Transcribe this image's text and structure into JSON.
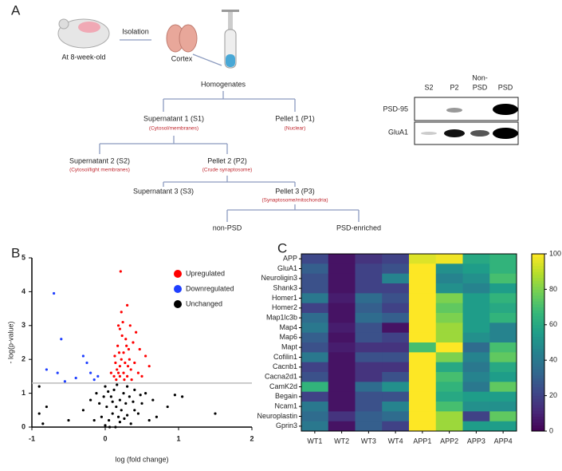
{
  "panel_labels": [
    "A",
    "B",
    "C"
  ],
  "diagram": {
    "isolation": "Isolation",
    "age": "At 8-week-old",
    "cortex": "Cortex",
    "homogenates": "Homogenates",
    "s1": "Supernatant 1 (S1)",
    "s1_note": "(Cytosol/membranes)",
    "p1": "Pellet 1 (P1)",
    "p1_note": "(Nuclear)",
    "s2": "Supernatant 2 (S2)",
    "s2_note": "(Cytosol/light membranes)",
    "p2": "Pellet 2 (P2)",
    "p2_note": "(Crude synaptosome)",
    "s3": "Supernatant 3 (S3)",
    "p3": "Pellet 3 (P3)",
    "p3_note": "(Synaptosome/mitochondria)",
    "nonpsd": "non-PSD",
    "psd": "PSD-enriched"
  },
  "blot": {
    "lanes": [
      "S2",
      "P2",
      [
        "Non-",
        "PSD"
      ],
      "PSD"
    ],
    "rows": [
      "PSD-95",
      "GluA1"
    ]
  },
  "chart_data": [
    {
      "type": "scatter",
      "xlabel": "log (fold change)",
      "ylabel": "- log(p-value)",
      "xlim": [
        -1,
        2
      ],
      "ylim": [
        0,
        5
      ],
      "xticks": [
        -1,
        0,
        1,
        2
      ],
      "yticks": [
        0,
        1,
        2,
        3,
        4,
        5
      ],
      "hline": 1.3,
      "legend": "upper right",
      "series": [
        {
          "name": "Upregulated",
          "color": "#ff0000",
          "x": [
            0.15,
            0.18,
            0.2,
            0.22,
            0.25,
            0.17,
            0.3,
            0.35,
            0.28,
            0.2,
            0.24,
            0.32,
            0.4,
            0.45,
            0.12,
            0.14,
            0.19,
            0.27,
            0.33,
            0.38,
            0.22,
            0.21,
            0.3,
            0.18,
            0.5,
            0.55,
            0.42,
            0.26,
            0.16,
            0.36,
            0.6,
            0.23,
            0.29,
            0.31,
            0.13,
            0.47,
            0.08,
            0.34,
            0.2,
            0.25
          ],
          "values": [
            1.4,
            1.6,
            1.8,
            2.0,
            2.2,
            2.4,
            1.5,
            1.7,
            2.6,
            2.9,
            3.1,
            2.3,
            1.9,
            1.6,
            1.5,
            1.9,
            2.2,
            1.9,
            2.0,
            2.5,
            3.4,
            4.6,
            3.6,
            3.0,
            1.5,
            2.1,
            2.8,
            1.4,
            1.7,
            1.4,
            1.8,
            2.7,
            2.4,
            1.8,
            2.1,
            2.3,
            1.6,
            3.0,
            1.5,
            1.6
          ]
        },
        {
          "name": "Downregulated",
          "color": "#1f3fff",
          "x": [
            -0.7,
            -0.6,
            -0.3,
            -0.25,
            -0.2,
            -0.4,
            -0.15,
            -0.65,
            -0.8,
            -0.1,
            -0.55
          ],
          "values": [
            3.95,
            2.6,
            2.1,
            1.9,
            1.6,
            1.45,
            1.4,
            1.6,
            1.7,
            1.5,
            1.35
          ]
        },
        {
          "name": "Unchanged",
          "color": "#000000",
          "x": [
            -0.9,
            -0.8,
            -0.85,
            -0.9,
            0.95,
            1.05,
            0.85,
            1.5,
            0.7,
            -0.5,
            -0.3,
            -0.2,
            0,
            0.05,
            0.1,
            0.15,
            0.2,
            0.25,
            0.3,
            0.02,
            0.08,
            0.12,
            0.18,
            0.22,
            0.28,
            0.33,
            0.4,
            0.45,
            0.5,
            0.55,
            0.6,
            0.35,
            0.4,
            -0.05,
            -0.08,
            -0.12,
            -0.15,
            0.0,
            0.06,
            0.14,
            0.65,
            0.2,
            0.1,
            0.3,
            0.26,
            -0.02,
            0.04,
            0.16,
            0.38,
            0.48
          ],
          "values": [
            0.4,
            0.6,
            0.1,
            1.2,
            0.95,
            0.9,
            0.6,
            0.4,
            0.3,
            0.2,
            0.5,
            0.8,
            0.05,
            0.2,
            0.4,
            0.6,
            0.8,
            1.0,
            1.2,
            0.6,
            0.9,
            1.1,
            0.3,
            0.5,
            0.7,
            0.9,
            1.1,
            0.4,
            0.7,
            1.0,
            0.2,
            0.1,
            0.5,
            0.3,
            0.7,
            1.0,
            0.2,
            1.2,
            0.0,
            0.0,
            0.8,
            0.15,
            0.75,
            0.35,
            0.25,
            0.9,
            1.05,
            1.25,
            0.75,
            0.95
          ]
        }
      ]
    },
    {
      "type": "heatmap",
      "rows": [
        "APP",
        "GluA1",
        "Neuroligin3",
        "Shank3",
        "Homer1",
        "Homer2",
        "Map1lc3b",
        "Map4",
        "Map6",
        "Mapt",
        "Cofilin1",
        "Cacnb1",
        "Cacna2d1",
        "CamK2d",
        "Begain",
        "Ncam1",
        "Neuroplastin",
        "Gprin3"
      ],
      "columns": [
        "WT1",
        "WT2",
        "WT3",
        "WT4",
        "APP1",
        "APP2",
        "APP3",
        "APP4"
      ],
      "values": [
        [
          22,
          5,
          15,
          20,
          95,
          98,
          60,
          65
        ],
        [
          30,
          5,
          20,
          25,
          100,
          50,
          55,
          65
        ],
        [
          25,
          5,
          20,
          45,
          100,
          45,
          50,
          70
        ],
        [
          25,
          5,
          20,
          20,
          100,
          50,
          45,
          55
        ],
        [
          40,
          8,
          35,
          25,
          100,
          80,
          55,
          65
        ],
        [
          20,
          5,
          30,
          20,
          100,
          75,
          55,
          60
        ],
        [
          35,
          5,
          35,
          30,
          100,
          80,
          55,
          65
        ],
        [
          40,
          8,
          25,
          5,
          100,
          85,
          55,
          45
        ],
        [
          30,
          5,
          25,
          20,
          100,
          85,
          50,
          45
        ],
        [
          25,
          8,
          15,
          15,
          70,
          100,
          35,
          70
        ],
        [
          40,
          5,
          25,
          25,
          100,
          80,
          45,
          75
        ],
        [
          20,
          5,
          15,
          15,
          100,
          60,
          40,
          60
        ],
        [
          25,
          5,
          15,
          25,
          100,
          70,
          45,
          55
        ],
        [
          65,
          5,
          35,
          50,
          100,
          65,
          40,
          75
        ],
        [
          20,
          5,
          25,
          25,
          100,
          60,
          55,
          55
        ],
        [
          40,
          5,
          25,
          45,
          100,
          70,
          50,
          50
        ],
        [
          35,
          15,
          30,
          35,
          100,
          85,
          20,
          75
        ],
        [
          40,
          5,
          30,
          20,
          100,
          85,
          55,
          55
        ]
      ],
      "zlim": [
        0,
        100
      ],
      "zticks": [
        0,
        20,
        40,
        60,
        80,
        100
      ],
      "colormap": [
        "#440154",
        "#482878",
        "#3e4989",
        "#31688e",
        "#26828e",
        "#1f9e89",
        "#35b779",
        "#6ece58",
        "#b5de2b",
        "#fde725"
      ]
    }
  ]
}
